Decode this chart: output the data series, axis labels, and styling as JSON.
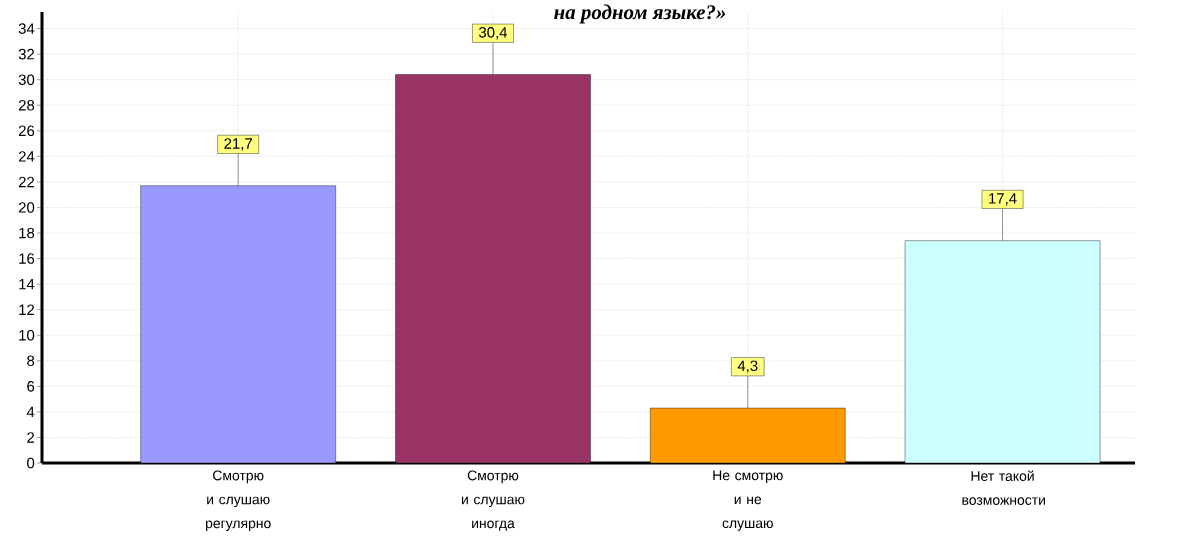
{
  "chart_data": {
    "type": "bar",
    "title": "на родном языке?»",
    "categories": [
      "Смотрю и слушаю регулярно",
      "Смотрю и слушаю иногда",
      "Не смотрю и не слушаю",
      "Нет такой возможности"
    ],
    "values": [
      21.7,
      30.4,
      4.3,
      17.4
    ],
    "colors": [
      "#9999ff",
      "#993366",
      "#ff9900",
      "#ccffff"
    ],
    "value_labels": [
      "21,7",
      "30,4",
      "4,3",
      "17,4"
    ],
    "ylim": [
      0,
      35.3
    ],
    "yticks": [
      0,
      2,
      4,
      6,
      8,
      10,
      12,
      14,
      16,
      18,
      20,
      22,
      24,
      26,
      28,
      30,
      32,
      34
    ],
    "grid": true
  }
}
